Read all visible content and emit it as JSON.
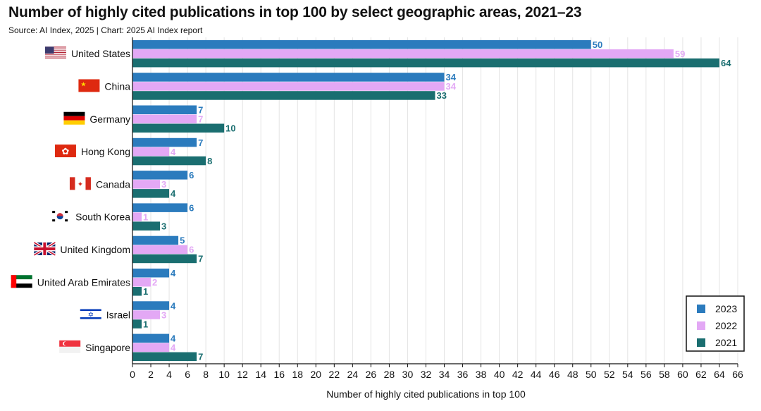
{
  "header": {
    "title": "Number of highly cited publications in top 100 by select geographic areas, 2021–23",
    "source": "Source: AI Index, 2025 | Chart: 2025 AI Index report"
  },
  "chart_data": {
    "type": "bar",
    "orientation": "horizontal",
    "title": "Number of highly cited publications in top 100 by select geographic areas, 2021–23",
    "xlabel": "Number of highly cited publications in top 100",
    "ylabel": "",
    "xlim": [
      0,
      66
    ],
    "xticks": [
      0,
      2,
      4,
      6,
      8,
      10,
      12,
      14,
      16,
      18,
      20,
      22,
      24,
      26,
      28,
      30,
      32,
      34,
      36,
      38,
      40,
      42,
      44,
      46,
      48,
      50,
      52,
      54,
      56,
      58,
      60,
      62,
      64,
      66
    ],
    "grid": "vertical",
    "legend_position": "bottom-right",
    "categories": [
      "United States",
      "China",
      "Germany",
      "Hong Kong",
      "Canada",
      "South Korea",
      "United Kingdom",
      "United Arab Emirates",
      "Israel",
      "Singapore"
    ],
    "flags": [
      "flag-us-icon",
      "flag-china-icon",
      "flag-germany-icon",
      "flag-hong-kong-icon",
      "flag-canada-icon",
      "flag-south-korea-icon",
      "flag-uk-icon",
      "flag-uae-icon",
      "flag-israel-icon",
      "flag-singapore-icon"
    ],
    "series": [
      {
        "name": "2023",
        "color": "#2b7bbd",
        "values": [
          50,
          34,
          7,
          7,
          6,
          6,
          5,
          4,
          4,
          4
        ]
      },
      {
        "name": "2022",
        "color": "#e3a8f5",
        "values": [
          59,
          34,
          7,
          4,
          3,
          1,
          6,
          2,
          3,
          4
        ]
      },
      {
        "name": "2021",
        "color": "#1a6e70",
        "values": [
          64,
          33,
          10,
          8,
          4,
          3,
          7,
          1,
          1,
          7
        ]
      }
    ]
  }
}
